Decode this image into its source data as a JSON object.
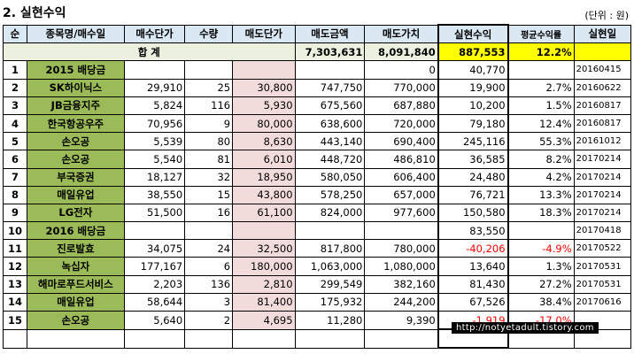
{
  "title": "2. 실현수익",
  "unit": "(단위 : 원)",
  "headers": [
    "순",
    "종목명/매수일",
    "매수단가",
    "수량",
    "매도단가",
    "매도금액",
    "매도가치",
    "실현수익",
    "평균수익률",
    "실현일"
  ],
  "total": {
    "label": "합 계",
    "sell_amount": "7,303,631",
    "sell_value": "8,091,840",
    "profit": "887,553",
    "rate": "12.2%"
  },
  "rows": [
    {
      "no": "1",
      "name": "2015 배당금",
      "buy": "",
      "qty": "",
      "sell": "",
      "amount": "",
      "value": "0",
      "profit": "40,770",
      "rate": "",
      "date": "20160415"
    },
    {
      "no": "2",
      "name": "SK하이닉스",
      "buy": "29,910",
      "qty": "25",
      "sell": "30,800",
      "amount": "747,750",
      "value": "770,000",
      "profit": "19,900",
      "rate": "2.7%",
      "date": "20160622"
    },
    {
      "no": "3",
      "name": "JB금융지주",
      "buy": "5,824",
      "qty": "116",
      "sell": "5,930",
      "amount": "675,560",
      "value": "687,880",
      "profit": "10,200",
      "rate": "1.5%",
      "date": "20160817"
    },
    {
      "no": "4",
      "name": "한국항공우주",
      "buy": "70,956",
      "qty": "9",
      "sell": "80,000",
      "amount": "638,600",
      "value": "720,000",
      "profit": "79,180",
      "rate": "12.4%",
      "date": "20160817"
    },
    {
      "no": "5",
      "name": "손오공",
      "buy": "5,539",
      "qty": "80",
      "sell": "8,630",
      "amount": "443,140",
      "value": "690,400",
      "profit": "245,116",
      "rate": "55.3%",
      "date": "20161012"
    },
    {
      "no": "6",
      "name": "손오공",
      "buy": "5,540",
      "qty": "81",
      "sell": "6,010",
      "amount": "448,720",
      "value": "486,810",
      "profit": "36,585",
      "rate": "8.2%",
      "date": "20170214"
    },
    {
      "no": "7",
      "name": "부국증권",
      "buy": "18,127",
      "qty": "32",
      "sell": "18,950",
      "amount": "580,050",
      "value": "606,400",
      "profit": "24,480",
      "rate": "4.2%",
      "date": "20170214"
    },
    {
      "no": "8",
      "name": "매일유업",
      "buy": "38,550",
      "qty": "15",
      "sell": "43,800",
      "amount": "578,250",
      "value": "657,000",
      "profit": "76,721",
      "rate": "13.3%",
      "date": "20170214"
    },
    {
      "no": "9",
      "name": "LG전자",
      "buy": "51,500",
      "qty": "16",
      "sell": "61,100",
      "amount": "824,000",
      "value": "977,600",
      "profit": "150,580",
      "rate": "18.3%",
      "date": "20170214"
    },
    {
      "no": "10",
      "name": "2016 배당금",
      "buy": "",
      "qty": "",
      "sell": "",
      "amount": "",
      "value": "",
      "profit": "83,550",
      "rate": "",
      "date": "20170418"
    },
    {
      "no": "11",
      "name": "진로발효",
      "buy": "34,075",
      "qty": "24",
      "sell": "32,500",
      "amount": "817,800",
      "value": "780,000",
      "profit": "-40,206",
      "rate": "-4.9%",
      "date": "20170522"
    },
    {
      "no": "12",
      "name": "녹십자",
      "buy": "177,167",
      "qty": "6",
      "sell": "180,000",
      "amount": "1,063,000",
      "value": "1,080,000",
      "profit": "13,640",
      "rate": "1.3%",
      "date": "20170531"
    },
    {
      "no": "13",
      "name": "해마로푸드서비스",
      "buy": "2,203",
      "qty": "136",
      "sell": "2,810",
      "amount": "299,549",
      "value": "382,160",
      "profit": "81,430",
      "rate": "27.2%",
      "date": "20170531"
    },
    {
      "no": "14",
      "name": "매일유업",
      "buy": "58,644",
      "qty": "3",
      "sell": "81,400",
      "amount": "175,932",
      "value": "244,200",
      "profit": "67,526",
      "rate": "38.4%",
      "date": "20170616"
    },
    {
      "no": "15",
      "name": "손오공",
      "buy": "5,640",
      "qty": "2",
      "sell": "4,695",
      "amount": "11,280",
      "value": "9,390",
      "profit": "-1,919",
      "rate": "-17.0%",
      "date": ""
    }
  ],
  "watermark": "http://notyetadult.tistory.com"
}
